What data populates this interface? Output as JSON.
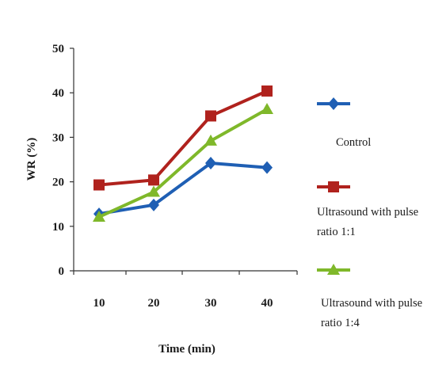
{
  "chart_data": {
    "type": "line",
    "xlabel": "Time (min)",
    "ylabel": "WR (%)",
    "x": [
      10,
      20,
      30,
      40
    ],
    "ylim": [
      0,
      50
    ],
    "yticks": [
      0,
      10,
      20,
      30,
      40,
      50
    ],
    "grid": false,
    "legend_position": "right",
    "series": [
      {
        "name": "Control",
        "values": [
          12.8,
          14.8,
          24.2,
          23.2
        ],
        "color": "#1f5fb4",
        "marker": "diamond"
      },
      {
        "name": "Ultrasound with pulse ratio 1:1",
        "values": [
          19.3,
          20.4,
          34.8,
          40.4
        ],
        "color": "#b0221d",
        "marker": "square"
      },
      {
        "name": "Ultrasound with pulse ratio 1:4",
        "values": [
          12.1,
          17.7,
          29.2,
          36.3
        ],
        "color": "#7fb82a",
        "marker": "triangle"
      }
    ]
  },
  "legend": {
    "entries": [
      {
        "lines": [
          "Control"
        ]
      },
      {
        "lines": [
          "Ultrasound with pulse",
          "ratio 1:1"
        ]
      },
      {
        "lines": [
          "Ultrasound with pulse",
          "ratio 1:4"
        ]
      }
    ]
  }
}
